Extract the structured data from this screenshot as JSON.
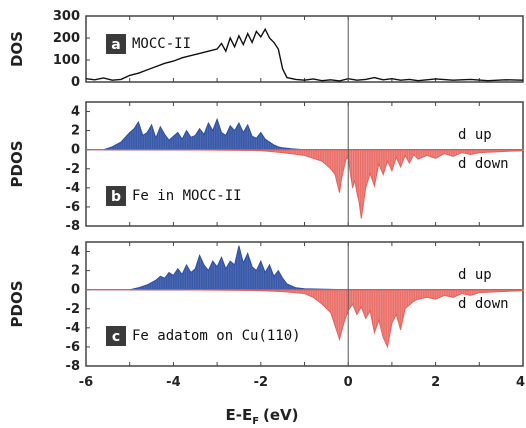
{
  "colors": {
    "spin_up": "#2d4fa3",
    "spin_down": "#e8605a",
    "dos_line": "#111111",
    "badge": "#3a3a3a",
    "frame": "#444444"
  },
  "x_label": {
    "main": "E-E",
    "sub": "F",
    "unit": "(eV)"
  },
  "chart_data": [
    {
      "type": "line",
      "panel_badge": "a",
      "annotation": "MOCC-II",
      "ylabel": "DOS",
      "xlim": [
        -6,
        4
      ],
      "ylim": [
        0,
        300
      ],
      "yticks": [
        "0",
        "100",
        "200",
        "300"
      ],
      "fermi_level": 0,
      "series": [
        {
          "x": [
            -6,
            -5.8,
            -5.6,
            -5.4,
            -5.2,
            -5.0,
            -4.8,
            -4.6,
            -4.4,
            -4.2,
            -4.0,
            -3.8,
            -3.6,
            -3.4,
            -3.2,
            -3.0,
            -2.9,
            -2.8,
            -2.7,
            -2.6,
            -2.5,
            -2.4,
            -2.3,
            -2.2,
            -2.1,
            -2.0,
            -1.9,
            -1.8,
            -1.7,
            -1.6,
            -1.5,
            -1.4,
            -1.2,
            -1.0,
            -0.8,
            -0.6,
            -0.4,
            -0.2,
            0,
            0.2,
            0.4,
            0.6,
            0.8,
            1.0,
            1.2,
            1.4,
            1.6,
            1.8,
            2.0,
            2.4,
            2.8,
            3.2,
            3.6,
            4.0
          ],
          "values": [
            15,
            10,
            18,
            8,
            12,
            30,
            40,
            55,
            70,
            85,
            95,
            110,
            120,
            130,
            140,
            150,
            175,
            140,
            200,
            160,
            210,
            170,
            220,
            180,
            230,
            205,
            240,
            200,
            180,
            150,
            60,
            20,
            12,
            8,
            14,
            6,
            10,
            5,
            15,
            8,
            12,
            20,
            10,
            15,
            8,
            12,
            6,
            10,
            14,
            8,
            12,
            6,
            10,
            8
          ]
        }
      ]
    },
    {
      "type": "area",
      "panel_badge": "b",
      "annotation": "Fe in MOCC-II",
      "ylabel": "PDOS",
      "xlim": [
        -6,
        4
      ],
      "ylim": [
        -8,
        5
      ],
      "yticks": [
        "4",
        "2",
        "0",
        "-2",
        "-4",
        "-6",
        "-8"
      ],
      "fermi_level": 0,
      "series": [
        {
          "name": "d up",
          "x": [
            -5.6,
            -5.4,
            -5.2,
            -5.0,
            -4.9,
            -4.8,
            -4.7,
            -4.6,
            -4.5,
            -4.4,
            -4.3,
            -4.2,
            -4.1,
            -4.0,
            -3.9,
            -3.8,
            -3.7,
            -3.6,
            -3.5,
            -3.4,
            -3.3,
            -3.2,
            -3.1,
            -3.0,
            -2.9,
            -2.8,
            -2.7,
            -2.6,
            -2.5,
            -2.4,
            -2.3,
            -2.2,
            -2.1,
            -2.0,
            -1.9,
            -1.8,
            -1.7,
            -1.6,
            -1.5,
            -1.3,
            -1.0,
            -0.5,
            0,
            1,
            2,
            3,
            4
          ],
          "values": [
            0,
            0.3,
            0.8,
            1.8,
            2.2,
            2.9,
            1.5,
            1.8,
            2.6,
            1.2,
            2.4,
            1.6,
            1.0,
            1.4,
            1.8,
            1.1,
            2.0,
            1.3,
            1.5,
            2.2,
            1.6,
            2.8,
            2.0,
            3.2,
            1.8,
            1.5,
            2.5,
            2.0,
            2.8,
            1.8,
            2.6,
            1.4,
            1.2,
            1.8,
            1.1,
            0.8,
            0.5,
            0.3,
            0.2,
            0.1,
            0,
            0,
            0,
            0,
            0,
            0,
            0
          ]
        },
        {
          "name": "d down",
          "x": [
            -6,
            -4,
            -2,
            -1.5,
            -1.0,
            -0.6,
            -0.4,
            -0.3,
            -0.2,
            -0.15,
            -0.1,
            -0.05,
            0.0,
            0.05,
            0.1,
            0.15,
            0.2,
            0.25,
            0.3,
            0.4,
            0.5,
            0.6,
            0.7,
            0.8,
            0.9,
            1.0,
            1.1,
            1.2,
            1.3,
            1.4,
            1.5,
            1.6,
            1.8,
            2.0,
            2.2,
            2.4,
            2.6,
            2.8,
            3.0,
            3.5,
            4.0
          ],
          "values": [
            0,
            0,
            -0.1,
            -0.3,
            -0.6,
            -1.2,
            -2.0,
            -2.6,
            -4.5,
            -3.0,
            -2.0,
            -1.0,
            -0.8,
            -2.5,
            -4.0,
            -3.2,
            -4.5,
            -5.5,
            -7.2,
            -4.0,
            -2.5,
            -3.8,
            -1.5,
            -2.6,
            -1.2,
            -2.2,
            -0.8,
            -1.8,
            -0.6,
            -1.4,
            -0.5,
            -1.0,
            -0.6,
            -0.9,
            -0.4,
            -0.7,
            -0.3,
            -0.5,
            -0.3,
            -0.2,
            -0.1
          ]
        }
      ]
    },
    {
      "type": "area",
      "panel_badge": "c",
      "annotation": "Fe adatom on Cu(110)",
      "ylabel": "PDOS",
      "xlim": [
        -6,
        4
      ],
      "ylim": [
        -8,
        5
      ],
      "yticks": [
        "4",
        "2",
        "0",
        "-2",
        "-4",
        "-6",
        "-8"
      ],
      "xticks": [
        "-6",
        "-4",
        "-2",
        "0",
        "2",
        "4"
      ],
      "fermi_level": 0,
      "series": [
        {
          "name": "d up",
          "x": [
            -5.0,
            -4.8,
            -4.6,
            -4.4,
            -4.3,
            -4.2,
            -4.1,
            -4.0,
            -3.9,
            -3.8,
            -3.7,
            -3.6,
            -3.5,
            -3.4,
            -3.3,
            -3.2,
            -3.1,
            -3.0,
            -2.9,
            -2.8,
            -2.7,
            -2.6,
            -2.5,
            -2.4,
            -2.3,
            -2.2,
            -2.1,
            -2.0,
            -1.9,
            -1.8,
            -1.7,
            -1.6,
            -1.5,
            -1.4,
            -1.2,
            -1.0,
            0,
            1,
            2,
            3,
            4
          ],
          "values": [
            0,
            0.2,
            0.5,
            1.0,
            1.4,
            1.2,
            1.8,
            1.5,
            2.2,
            1.6,
            2.6,
            1.8,
            2.2,
            3.6,
            2.6,
            2.0,
            3.0,
            2.4,
            3.4,
            2.2,
            3.0,
            2.6,
            4.6,
            2.8,
            3.8,
            2.4,
            2.0,
            3.0,
            1.8,
            2.6,
            1.4,
            2.0,
            1.2,
            0.6,
            0.2,
            0.1,
            0,
            0,
            0,
            0,
            0
          ]
        },
        {
          "name": "d down",
          "x": [
            -6,
            -4,
            -2,
            -1.5,
            -1.0,
            -0.8,
            -0.6,
            -0.4,
            -0.3,
            -0.2,
            -0.1,
            0.0,
            0.1,
            0.2,
            0.3,
            0.4,
            0.5,
            0.6,
            0.7,
            0.8,
            0.9,
            1.0,
            1.1,
            1.2,
            1.3,
            1.4,
            1.5,
            1.6,
            1.8,
            2.0,
            2.2,
            2.4,
            2.6,
            2.8,
            3.0,
            3.5,
            4.0
          ],
          "values": [
            0,
            0,
            -0.1,
            -0.2,
            -0.4,
            -0.8,
            -1.5,
            -2.4,
            -3.8,
            -5.2,
            -3.5,
            -2.2,
            -1.5,
            -2.6,
            -1.8,
            -3.0,
            -2.2,
            -4.5,
            -3.2,
            -5.0,
            -6.0,
            -3.5,
            -2.6,
            -4.2,
            -2.0,
            -1.6,
            -1.2,
            -1.0,
            -0.8,
            -1.0,
            -0.6,
            -0.8,
            -0.4,
            -0.6,
            -0.3,
            -0.2,
            -0.1
          ]
        }
      ]
    }
  ]
}
